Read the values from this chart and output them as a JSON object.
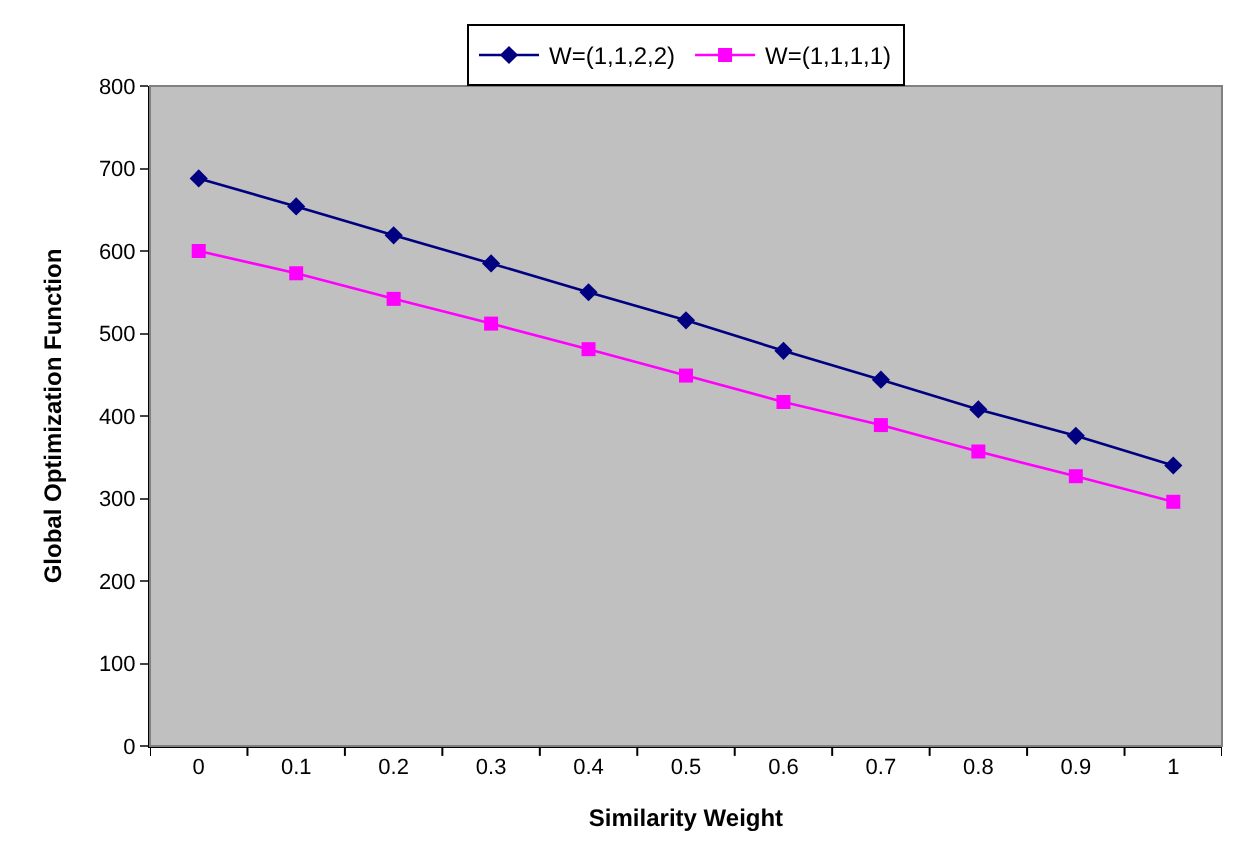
{
  "chart_data": {
    "type": "line",
    "xlabel": "Similarity Weight",
    "ylabel": "Global Optimization Function",
    "categories": [
      "0",
      "0.1",
      "0.2",
      "0.3",
      "0.4",
      "0.5",
      "0.6",
      "0.7",
      "0.8",
      "0.9",
      "1"
    ],
    "ylim": [
      0,
      800
    ],
    "yticks": [
      0,
      100,
      200,
      300,
      400,
      500,
      600,
      700,
      800
    ],
    "grid": false,
    "legend": "top",
    "series": [
      {
        "name": "W=(1,1,2,2)",
        "color": "#000080",
        "marker": "diamond",
        "values": [
          688,
          654,
          619,
          585,
          550,
          516,
          479,
          444,
          408,
          376,
          340
        ]
      },
      {
        "name": "W=(1,1,1,1)",
        "color": "#ff00ff",
        "marker": "square",
        "values": [
          600,
          573,
          542,
          512,
          481,
          449,
          417,
          389,
          357,
          327,
          296
        ]
      }
    ]
  }
}
